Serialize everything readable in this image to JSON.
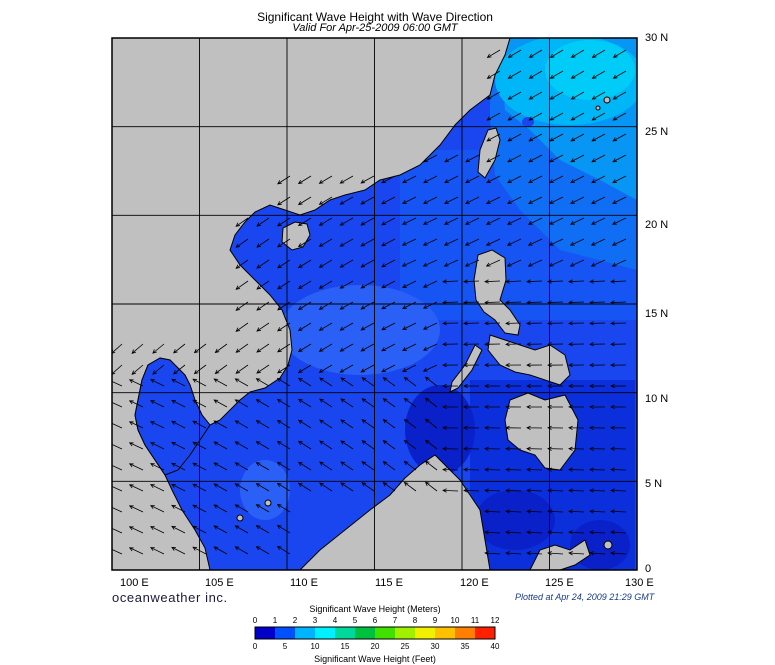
{
  "header": {
    "title": "Significant Wave Height with Wave Direction",
    "subtitle": "Valid For Apr-25-2009 06:00 GMT"
  },
  "map": {
    "lon_range": [
      100,
      130
    ],
    "lat_range": [
      0,
      30
    ],
    "lon_labels": [
      "100 E",
      "105 E",
      "110 E",
      "115 E",
      "120 E",
      "125 E",
      "130 E"
    ],
    "lat_labels": [
      "0",
      "5 N",
      "10 N",
      "15 N",
      "20 N",
      "25 N",
      "30 N"
    ],
    "land_color": "#c0c0c0",
    "sea_base_color": "#1a46f0",
    "grid": true
  },
  "branding": {
    "company": "oceanweather inc.",
    "plotted": "Plotted at Apr 24, 2009 21:29 GMT"
  },
  "colorbar": {
    "meters_label": "Significant Wave Height (Meters)",
    "feet_label": "Significant Wave Height (Feet)",
    "meters_ticks": [
      "0",
      "1",
      "2",
      "3",
      "4",
      "5",
      "6",
      "7",
      "8",
      "9",
      "10",
      "11",
      "12"
    ],
    "feet_ticks": [
      "0",
      "5",
      "10",
      "15",
      "20",
      "25",
      "30",
      "35",
      "40"
    ],
    "colors": [
      "#0000c8",
      "#0050ff",
      "#00b4ff",
      "#00f0ff",
      "#00d89c",
      "#00c040",
      "#40e000",
      "#a0f000",
      "#f0f000",
      "#ffc000",
      "#ff8000",
      "#ff2000"
    ]
  }
}
